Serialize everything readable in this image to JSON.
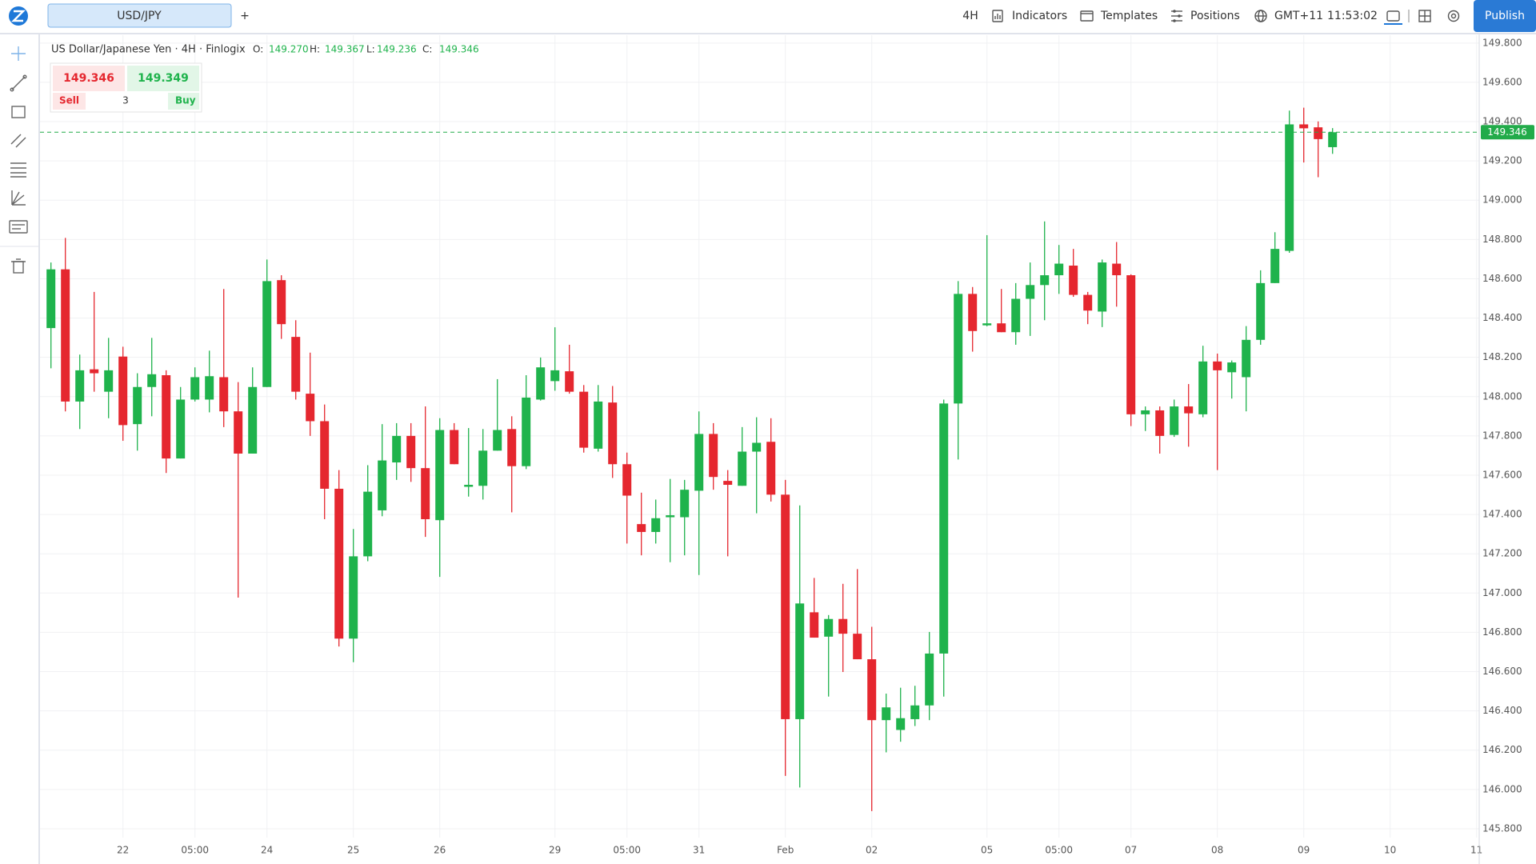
{
  "toolbar": {
    "tab": "USD/JPY",
    "add": "+",
    "interval": "4H",
    "indicators": "Indicators",
    "templates": "Templates",
    "positions": "Positions",
    "timezone": "GMT+11",
    "time": "11:53:02",
    "publish": "Publish"
  },
  "legend": {
    "symbol": "US Dollar/Japanese Yen · 4H · Finlogix",
    "items": [
      {
        "label": "O:",
        "value": "149.270"
      },
      {
        "label": "H:",
        "value": "149.367"
      },
      {
        "label": "L:",
        "value": "149.236"
      },
      {
        "label": "C:",
        "value": "149.346"
      }
    ]
  },
  "trade_panel": {
    "sell_price": "149.346",
    "buy_price": "149.349",
    "sell": "Sell",
    "buy": "Buy",
    "quantity": "3"
  },
  "chart_data": {
    "type": "candlestick",
    "up_color": "#1fb34c",
    "down_color": "#e5272f",
    "grid": true,
    "categories": [
      null,
      null,
      null,
      null,
      null,
      "22",
      null,
      null,
      null,
      null,
      "05:00",
      null,
      null,
      null,
      null,
      "24",
      null,
      null,
      null,
      null,
      null,
      "25",
      null,
      null,
      null,
      null,
      null,
      "26",
      null,
      null,
      null,
      null,
      null,
      null,
      null,
      "29",
      null,
      null,
      null,
      null,
      "05:00",
      null,
      null,
      null,
      null,
      "31",
      null,
      null,
      null,
      null,
      null,
      "Feb",
      null,
      null,
      null,
      null,
      null,
      "02",
      null,
      null,
      null,
      null,
      null,
      null,
      null,
      "05",
      null,
      null,
      null,
      null,
      "05:00",
      null,
      null,
      null,
      null,
      "07",
      null,
      null,
      null,
      null,
      null,
      "08",
      null,
      null,
      null,
      null,
      null,
      "09",
      null,
      null,
      null,
      null,
      null,
      "10",
      null,
      null,
      null,
      null,
      null,
      "11"
    ],
    "open": [
      148.349,
      148.648,
      147.975,
      148.139,
      148.025,
      148.204,
      147.86,
      148.049,
      148.109,
      147.685,
      147.985,
      147.985,
      148.099,
      147.925,
      147.71,
      148.049,
      148.593,
      148.304,
      148.015,
      147.875,
      147.531,
      146.768,
      147.187,
      147.421,
      147.665,
      147.8,
      147.636,
      147.371,
      147.83,
      147.541,
      147.546,
      147.725,
      147.835,
      147.646,
      147.985,
      148.079,
      148.129,
      148.025,
      147.735,
      147.97,
      147.656,
      147.351,
      147.311,
      147.386,
      147.386,
      147.521,
      147.81,
      147.571,
      147.546,
      147.72,
      147.77,
      147.501,
      146.358,
      146.902,
      146.778,
      146.868,
      146.793,
      146.663,
      146.353,
      146.303,
      146.358,
      146.428,
      146.692,
      147.965,
      148.523,
      148.363,
      148.373,
      148.328,
      148.498,
      148.568,
      148.618,
      148.667,
      148.518,
      148.433,
      148.677,
      148.618,
      147.91,
      147.93,
      147.805,
      147.95,
      147.91,
      148.179,
      148.124,
      148.099,
      148.289,
      148.578,
      148.742,
      149.386,
      149.371,
      149.27,
      null,
      null,
      null,
      null,
      null,
      null,
      null,
      null,
      null,
      null
    ],
    "high": [
      148.683,
      148.808,
      148.214,
      148.533,
      148.299,
      148.254,
      148.119,
      148.299,
      148.134,
      148.049,
      148.149,
      148.234,
      148.548,
      148.074,
      148.149,
      148.698,
      148.618,
      148.389,
      148.224,
      147.96,
      147.626,
      147.326,
      147.651,
      147.86,
      147.865,
      147.865,
      147.95,
      147.89,
      147.865,
      147.84,
      147.835,
      148.089,
      147.9,
      148.109,
      148.199,
      148.353,
      148.264,
      148.059,
      148.059,
      148.054,
      147.715,
      147.511,
      147.476,
      147.581,
      147.576,
      147.925,
      147.865,
      147.626,
      147.845,
      147.895,
      147.89,
      147.576,
      147.446,
      147.077,
      146.888,
      147.047,
      147.122,
      146.828,
      146.488,
      146.518,
      146.528,
      146.802,
      147.985,
      148.588,
      148.558,
      148.822,
      148.548,
      148.578,
      148.683,
      148.892,
      148.772,
      148.752,
      148.533,
      148.698,
      148.787,
      148.623,
      147.95,
      147.95,
      147.985,
      148.064,
      148.259,
      148.219,
      148.184,
      148.359,
      148.643,
      148.837,
      149.456,
      149.471,
      149.401,
      149.367,
      null,
      null,
      null,
      null,
      null,
      null,
      null,
      null,
      null,
      null
    ],
    "low": [
      148.144,
      147.925,
      147.835,
      148.025,
      147.89,
      147.775,
      147.725,
      147.9,
      147.611,
      147.685,
      147.975,
      147.92,
      147.845,
      146.977,
      147.71,
      148.049,
      148.294,
      147.985,
      147.8,
      147.376,
      146.728,
      146.648,
      147.162,
      147.391,
      147.576,
      147.566,
      147.286,
      147.082,
      147.656,
      147.491,
      147.476,
      147.725,
      147.411,
      147.631,
      147.98,
      148.03,
      148.015,
      147.715,
      147.72,
      147.586,
      147.252,
      147.192,
      147.252,
      147.157,
      147.192,
      147.092,
      147.526,
      147.187,
      147.546,
      147.406,
      147.466,
      146.069,
      146.01,
      146.773,
      146.473,
      146.598,
      146.663,
      145.89,
      146.189,
      146.243,
      146.323,
      146.353,
      146.473,
      147.68,
      148.229,
      148.358,
      148.328,
      148.264,
      148.309,
      148.389,
      148.523,
      148.508,
      148.369,
      148.354,
      148.458,
      147.85,
      147.825,
      147.71,
      147.795,
      147.745,
      147.895,
      147.626,
      147.99,
      147.925,
      148.264,
      148.578,
      148.732,
      149.192,
      149.117,
      149.236,
      null,
      null,
      null,
      null,
      null,
      null,
      null,
      null,
      null,
      null
    ],
    "close": [
      148.648,
      147.975,
      148.134,
      148.119,
      148.134,
      147.855,
      148.049,
      148.114,
      147.685,
      147.985,
      148.099,
      148.104,
      147.925,
      147.71,
      148.049,
      148.588,
      148.369,
      148.025,
      147.875,
      147.531,
      146.768,
      147.187,
      147.516,
      147.675,
      147.8,
      147.636,
      147.376,
      147.83,
      147.656,
      147.551,
      147.725,
      147.83,
      147.646,
      147.995,
      148.149,
      148.134,
      148.025,
      147.74,
      147.975,
      147.656,
      147.496,
      147.311,
      147.381,
      147.396,
      147.526,
      147.81,
      147.591,
      147.551,
      147.72,
      147.765,
      147.501,
      146.358,
      146.947,
      146.773,
      146.868,
      146.793,
      146.663,
      146.353,
      146.418,
      146.363,
      146.428,
      146.692,
      147.965,
      148.523,
      148.334,
      148.373,
      148.328,
      148.498,
      148.568,
      148.618,
      148.677,
      148.518,
      148.438,
      148.683,
      148.618,
      147.91,
      147.93,
      147.8,
      147.95,
      147.915,
      148.179,
      148.134,
      148.174,
      148.289,
      148.578,
      148.752,
      149.386,
      149.366,
      149.311,
      149.346,
      null,
      null,
      null,
      null,
      null,
      null,
      null,
      null,
      null,
      null
    ],
    "ylim": [
      145.755,
      149.84
    ],
    "yticks": [
      {
        "value": 145.8,
        "label": "145.800"
      },
      {
        "value": 146.0,
        "label": "146.000"
      },
      {
        "value": 146.2,
        "label": "146.200"
      },
      {
        "value": 146.4,
        "label": "146.400"
      },
      {
        "value": 146.6,
        "label": "146.600"
      },
      {
        "value": 146.8,
        "label": "146.800"
      },
      {
        "value": 147.0,
        "label": "147.000"
      },
      {
        "value": 147.2,
        "label": "147.200"
      },
      {
        "value": 147.4,
        "label": "147.400"
      },
      {
        "value": 147.6,
        "label": "147.600"
      },
      {
        "value": 147.8,
        "label": "147.800"
      },
      {
        "value": 148.0,
        "label": "148.000"
      },
      {
        "value": 148.2,
        "label": "148.200"
      },
      {
        "value": 148.4,
        "label": "148.400"
      },
      {
        "value": 148.6,
        "label": "148.600"
      },
      {
        "value": 148.8,
        "label": "148.800"
      },
      {
        "value": 149.0,
        "label": "149.000"
      },
      {
        "value": 149.2,
        "label": "149.200"
      },
      {
        "value": 149.4,
        "label": "149.400"
      },
      {
        "value": 149.6,
        "label": "149.600"
      },
      {
        "value": 149.8,
        "label": "149.800"
      }
    ],
    "price_line": {
      "value": 149.346,
      "label": "149.346",
      "color": "#22ab4a"
    }
  }
}
